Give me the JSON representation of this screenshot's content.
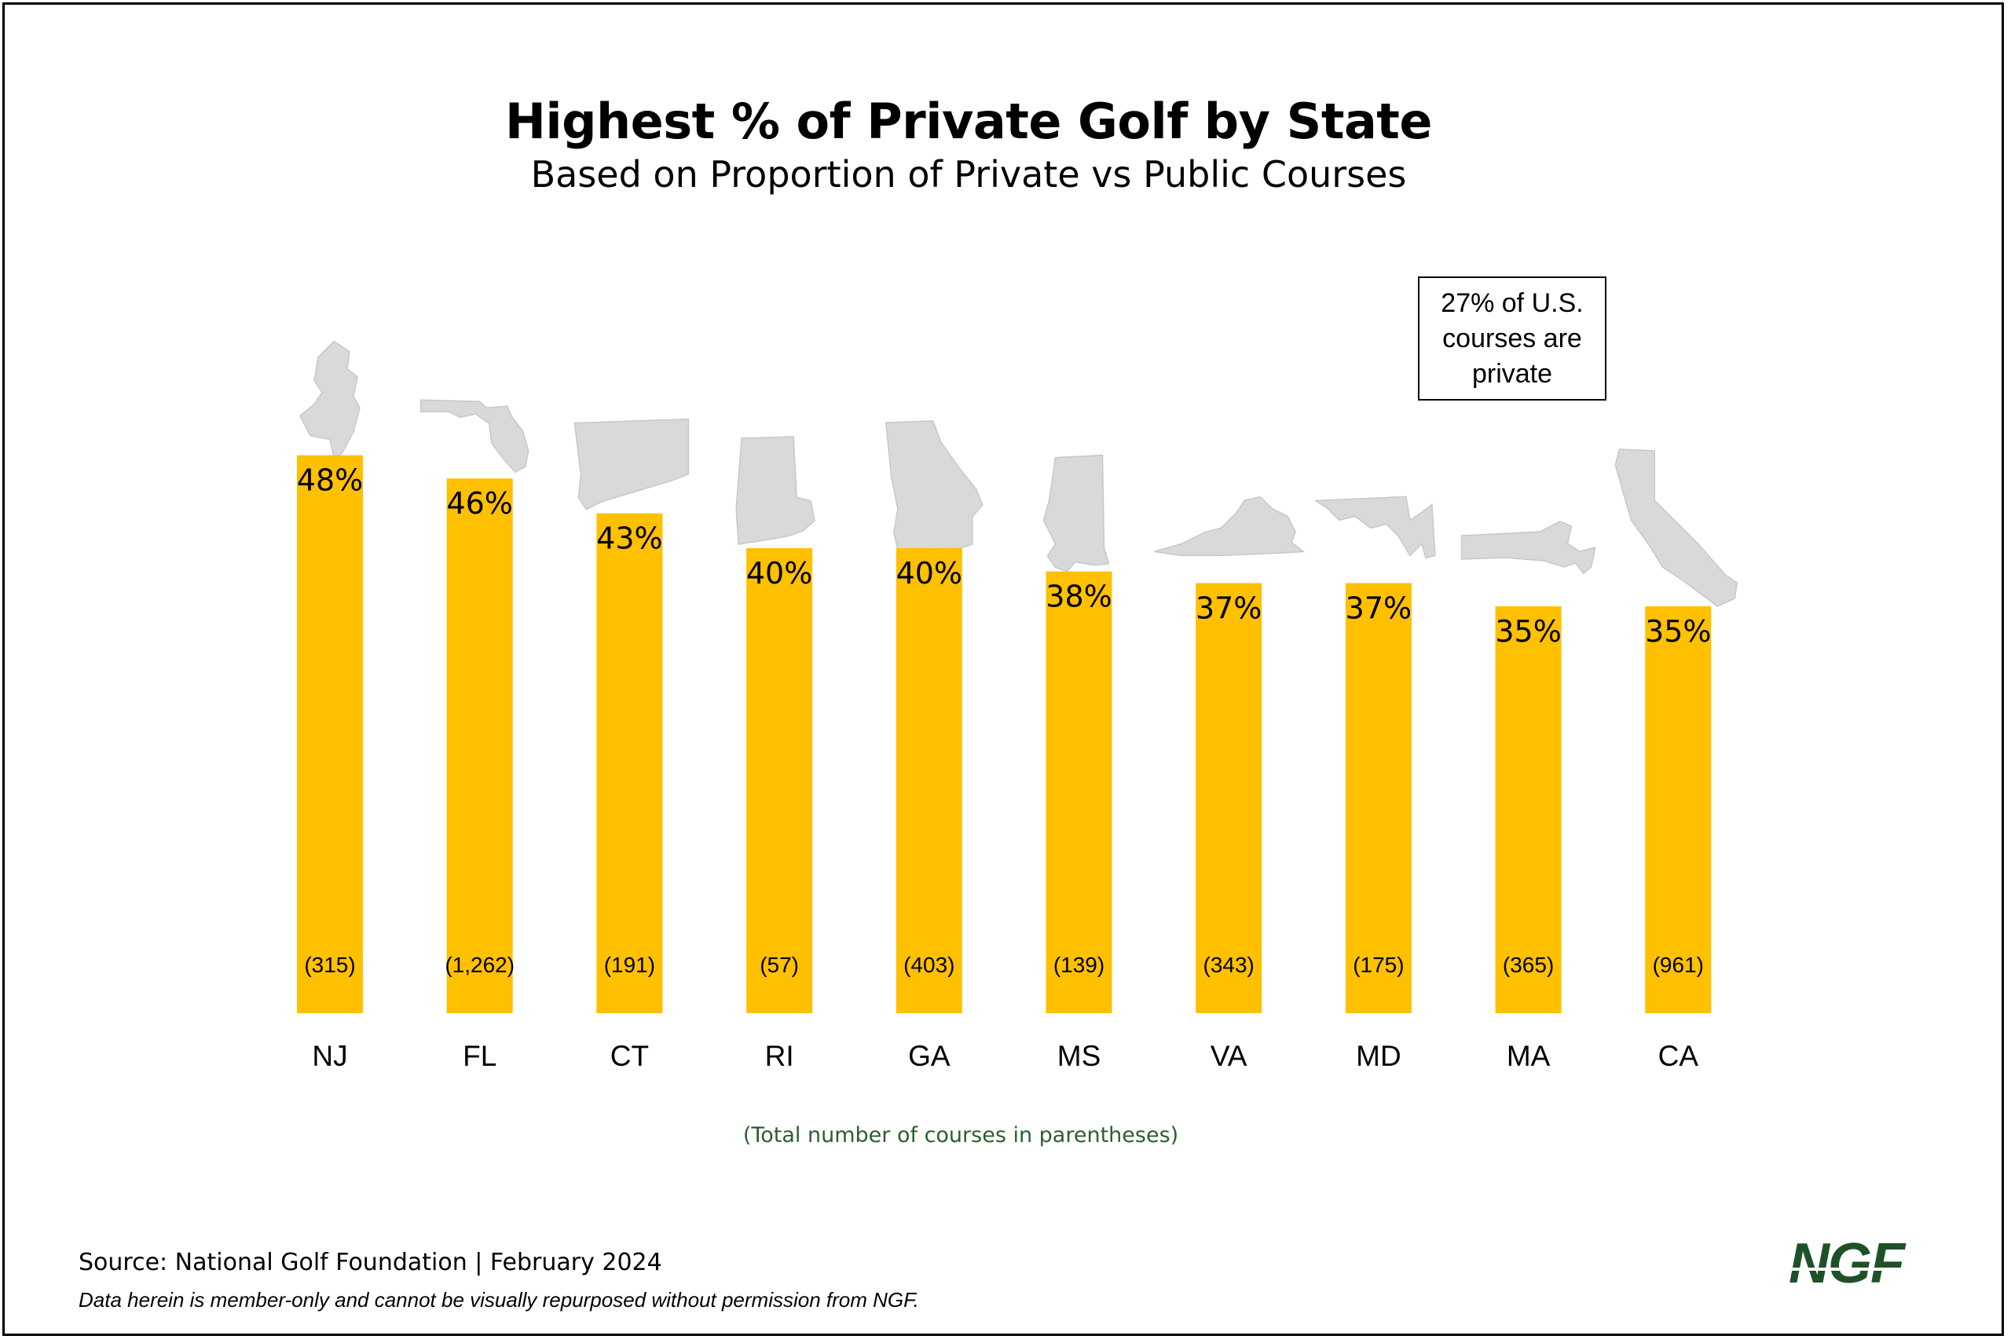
{
  "chart_data": {
    "type": "bar",
    "title": "Highest % of Private Golf by State",
    "subtitle": "Based on Proportion of Private vs Public Courses",
    "categories": [
      "NJ",
      "FL",
      "CT",
      "RI",
      "GA",
      "MS",
      "VA",
      "MD",
      "MA",
      "CA"
    ],
    "values": [
      48,
      46,
      43,
      40,
      40,
      38,
      37,
      37,
      35,
      35
    ],
    "value_labels": [
      "48%",
      "46%",
      "43%",
      "40%",
      "40%",
      "38%",
      "37%",
      "37%",
      "35%",
      "35%"
    ],
    "course_counts": [
      "(315)",
      "(1,262)",
      "(191)",
      "(57)",
      "(403)",
      "(139)",
      "(343)",
      "(175)",
      "(365)",
      "(961)"
    ],
    "state_shape_icons": [
      "new-jersey-icon",
      "florida-icon",
      "connecticut-icon",
      "rhode-island-icon",
      "georgia-icon",
      "mississippi-icon",
      "virginia-icon",
      "maryland-icon",
      "massachusetts-icon",
      "california-icon"
    ],
    "xlabel": "",
    "ylabel": "",
    "ylim": [
      0,
      100
    ],
    "grid": false,
    "colors": {
      "bar": "#FFC000",
      "state_shape": "#D9D9D9"
    }
  },
  "callout": "27% of U.S. courses are private",
  "note": "(Total number of courses in parentheses)",
  "footer": {
    "source": "Source: National Golf Foundation | February 2024",
    "disclaimer": "Data herein is member-only and cannot be visually repurposed without permission from NGF."
  },
  "logo": {
    "text": "NGF",
    "color": "#1E5128"
  }
}
